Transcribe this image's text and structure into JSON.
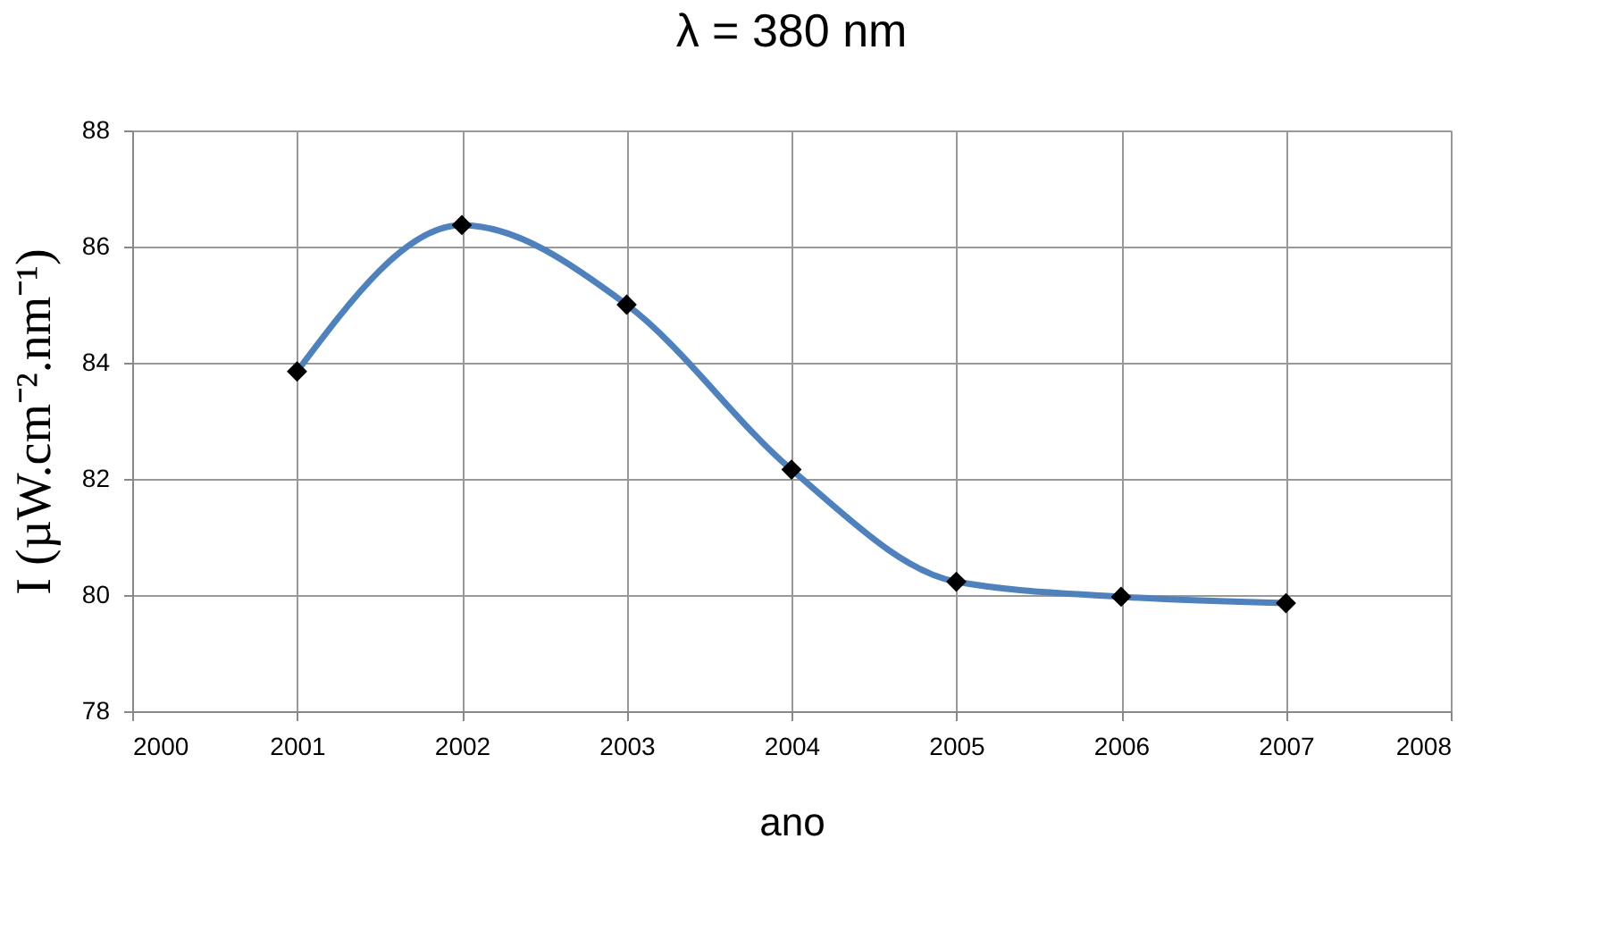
{
  "chart_data": {
    "type": "line",
    "title": "λ = 380 nm",
    "xlabel": "ano",
    "ylabel": "I (µW.cm⁻².nm⁻¹)",
    "x": [
      2001,
      2002,
      2003,
      2004,
      2005,
      2006,
      2007
    ],
    "series": [
      {
        "color": "#4f81bd",
        "values": [
          83.85,
          86.37,
          85.0,
          82.16,
          80.23,
          79.97,
          79.86
        ]
      }
    ],
    "marker": "diamond",
    "line_style": "solid",
    "xlim": [
      2000,
      2008
    ],
    "xticks": [
      2000,
      2001,
      2002,
      2003,
      2004,
      2005,
      2006,
      2007,
      2008
    ],
    "ylim": [
      78,
      88
    ],
    "yticks": [
      78,
      80,
      82,
      84,
      86,
      88
    ],
    "grid": true
  }
}
